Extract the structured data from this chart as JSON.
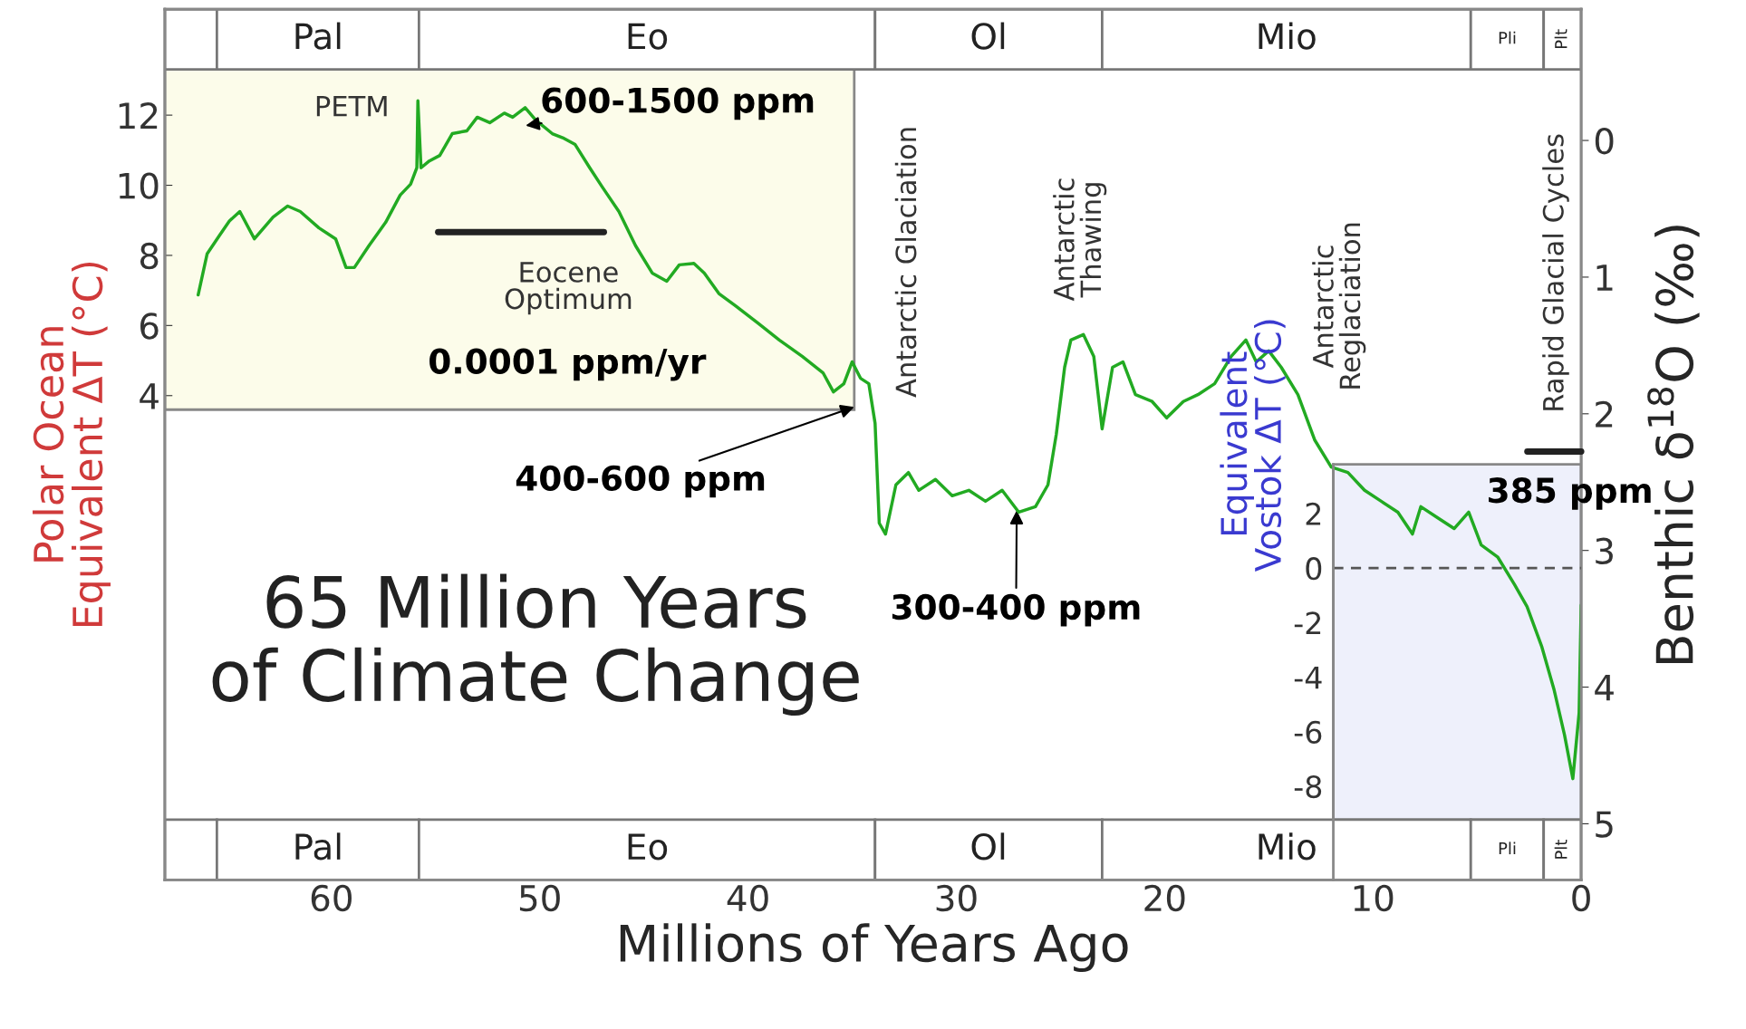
{
  "chart_data": {
    "type": "line",
    "title": "65 Million Years\nof Climate Change",
    "xlabel": "Millions of Years Ago",
    "ylabel": "Polar Ocean\nEquivalent ΔT (°C)",
    "y2label": "Benthic δ$^{18}$O (‰)",
    "y3label": "Equivalent\nVostok ΔT (°C)",
    "x": [
      66.4,
      65.97,
      65.4,
      64.9,
      64.4,
      63.7,
      62.8,
      62.1,
      61.5,
      60.6,
      59.8,
      59.3,
      58.9,
      58.2,
      57.4,
      56.7,
      56.2,
      55.9,
      55.85,
      55.7,
      55.3,
      54.8,
      54.2,
      53.5,
      53.0,
      52.4,
      51.7,
      51.3,
      50.7,
      50.2,
      49.4,
      48.9,
      48.3,
      47.6,
      47.0,
      46.2,
      45.4,
      44.6,
      43.9,
      43.3,
      42.6,
      42.1,
      41.4,
      40.6,
      39.5,
      38.5,
      37.4,
      36.4,
      35.9,
      35.4,
      35.0,
      34.6,
      34.2,
      33.9,
      33.7,
      33.4,
      32.9,
      32.3,
      31.8,
      31.0,
      30.2,
      29.4,
      28.6,
      27.8,
      27.0,
      26.2,
      25.6,
      25.2,
      24.8,
      24.5,
      23.9,
      23.4,
      23.0,
      22.5,
      22.0,
      21.4,
      20.6,
      19.9,
      19.1,
      18.4,
      17.6,
      16.8,
      16.1,
      15.6,
      15.0,
      14.4,
      13.6,
      12.8,
      12.0,
      11.2,
      10.4,
      9.6,
      8.8,
      8.1,
      7.7,
      6.9,
      6.1,
      5.4,
      4.8,
      4.0,
      3.2,
      2.6,
      1.9,
      1.3,
      0.8,
      0.4,
      0.1,
      0.0
    ],
    "series": [
      {
        "color": "#22aa22",
        "axis": "y2",
        "values": [
          1.13,
          0.83,
          0.7,
          0.59,
          0.52,
          0.72,
          0.56,
          0.48,
          0.52,
          0.64,
          0.72,
          0.93,
          0.93,
          0.77,
          0.6,
          0.4,
          0.32,
          0.2,
          -0.29,
          0.2,
          0.15,
          0.11,
          -0.05,
          -0.07,
          -0.17,
          -0.13,
          -0.2,
          -0.17,
          -0.24,
          -0.15,
          -0.05,
          -0.02,
          0.03,
          0.2,
          0.34,
          0.52,
          0.77,
          0.97,
          1.03,
          0.91,
          0.9,
          0.97,
          1.12,
          1.21,
          1.34,
          1.46,
          1.58,
          1.7,
          1.84,
          1.78,
          1.62,
          1.74,
          1.78,
          2.07,
          2.8,
          2.88,
          2.52,
          2.43,
          2.56,
          2.48,
          2.6,
          2.56,
          2.64,
          2.56,
          2.72,
          2.68,
          2.52,
          2.15,
          1.66,
          1.46,
          1.42,
          1.58,
          2.11,
          1.66,
          1.62,
          1.86,
          1.91,
          2.03,
          1.91,
          1.86,
          1.78,
          1.58,
          1.46,
          1.62,
          1.54,
          1.66,
          1.86,
          2.19,
          2.39,
          2.43,
          2.56,
          2.64,
          2.72,
          2.88,
          2.68,
          2.76,
          2.84,
          2.72,
          2.96,
          3.05,
          3.25,
          3.41,
          3.7,
          4.02,
          4.35,
          4.67,
          4.19,
          3.4
        ]
      }
    ],
    "xlim": [
      68,
      0
    ],
    "xticks": [
      60,
      50,
      40,
      30,
      20,
      10,
      0
    ],
    "ylim": [
      -9.81,
      15.02
    ],
    "yticks": [
      4,
      6,
      8,
      10,
      12
    ],
    "y2lim": [
      5.41,
      -0.96
    ],
    "y2ticks": [
      0,
      1,
      2,
      3,
      4,
      5
    ],
    "y3lim": [
      -11.43,
      20.49
    ],
    "y3ticks": [
      -8,
      -6,
      -4,
      -2,
      0,
      2
    ],
    "bands": [
      {
        "axis": "x",
        "from": 68,
        "to": 34.9,
        "color": "#fcfcea"
      },
      {
        "axis": "x",
        "from": 11.9,
        "to": 0,
        "color": "#eef0fb"
      },
      {
        "axis": "x",
        "from": 65.5,
        "to": 55.8,
        "label": "Pal"
      },
      {
        "axis": "x",
        "from": 55.8,
        "to": 33.9,
        "label": "Eo"
      },
      {
        "axis": "x",
        "from": 33.9,
        "to": 23.0,
        "label": "Ol"
      },
      {
        "axis": "x",
        "from": 23.0,
        "to": 5.3,
        "label": "Mio"
      },
      {
        "axis": "x",
        "from": 5.3,
        "to": 1.8,
        "label": "Pli"
      },
      {
        "axis": "x",
        "from": 1.8,
        "to": 0,
        "label": "Plt"
      }
    ],
    "ref_lines": [
      {
        "axis": "y3",
        "value": 0,
        "color": "#555555",
        "line_style": "dashed"
      }
    ],
    "annotations": [
      "PETM",
      "600-1500 ppm",
      "0.0001 ppm/yr",
      {
        "text": "400-600 ppm",
        "x": 34.9,
        "y": 3.68
      },
      "Antarctic Glaciation",
      {
        "text": "300-400 ppm",
        "x": 27.1,
        "y": 0.73
      },
      "Antarctic\nThawing",
      "Antarctic\nReglaciation",
      "385 ppm",
      "Eocene\nOptimum",
      "Rapid Glacial Cycles"
    ]
  }
}
